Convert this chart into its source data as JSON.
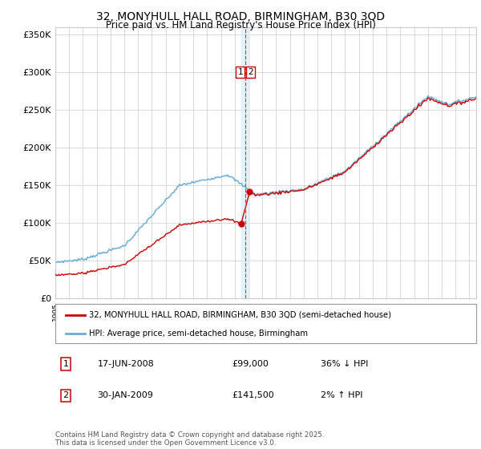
{
  "title_line1": "32, MONYHULL HALL ROAD, BIRMINGHAM, B30 3QD",
  "title_line2": "Price paid vs. HM Land Registry's House Price Index (HPI)",
  "ylabel_values": [
    "£0",
    "£50K",
    "£100K",
    "£150K",
    "£200K",
    "£250K",
    "£300K",
    "£350K"
  ],
  "ylim": [
    0,
    360000
  ],
  "yticks": [
    0,
    50000,
    100000,
    150000,
    200000,
    250000,
    300000,
    350000
  ],
  "x_start_year": 1995,
  "x_end_year": 2025,
  "sale1_x": 2008.46,
  "sale1_price": 99000,
  "sale2_x": 2009.08,
  "sale2_price": 141500,
  "hpi_color": "#6aaed6",
  "price_color": "#cc0000",
  "vline_color": "#cc4444",
  "band_color": "#ddeeff",
  "background_color": "#ffffff",
  "grid_color": "#cccccc",
  "legend_label1": "32, MONYHULL HALL ROAD, BIRMINGHAM, B30 3QD (semi-detached house)",
  "legend_label2": "HPI: Average price, semi-detached house, Birmingham",
  "table_row1": [
    "1",
    "17-JUN-2008",
    "£99,000",
    "36% ↓ HPI"
  ],
  "table_row2": [
    "2",
    "30-JAN-2009",
    "£141,500",
    "2% ↑ HPI"
  ],
  "footnote": "Contains HM Land Registry data © Crown copyright and database right 2025.\nThis data is licensed under the Open Government Licence v3.0."
}
